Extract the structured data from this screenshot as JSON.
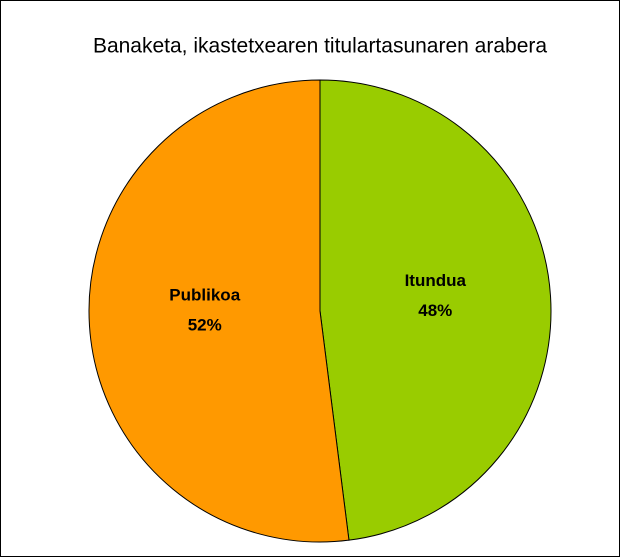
{
  "chart_data": {
    "type": "pie",
    "title": "Banaketa, ikastetxearen titulartasunaren arabera",
    "categories": [
      "Itundua",
      "Publikoa"
    ],
    "values": [
      48,
      52
    ],
    "value_labels": [
      "48%",
      "52%"
    ],
    "colors": [
      "#99cc00",
      "#ff9900"
    ]
  }
}
